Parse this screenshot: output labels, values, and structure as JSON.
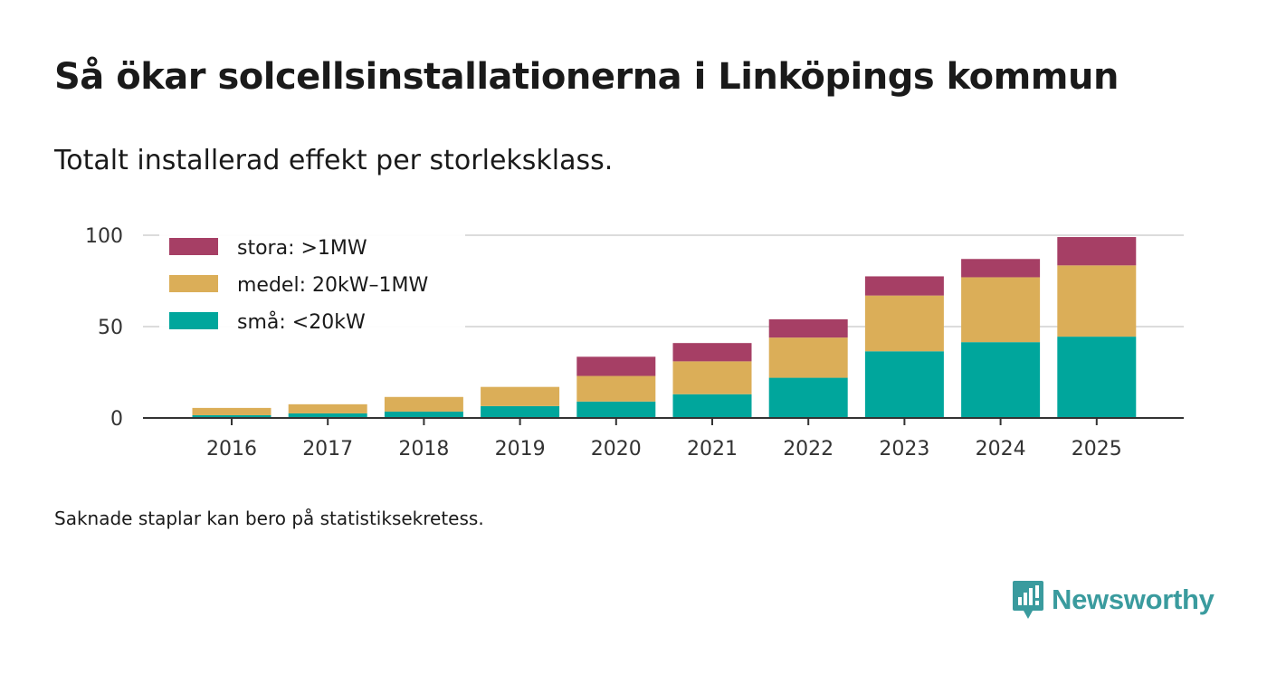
{
  "title": "Så ökar solcellsinstallationerna i Linköpings kommun",
  "subtitle": "Totalt installerad effekt per storleksklass.",
  "note": "Saknade staplar kan bero på statistiksekretess.",
  "brand": {
    "name": "Newsworthy",
    "color": "#3a9b9e"
  },
  "chart_data": {
    "type": "bar",
    "stacked": true,
    "categories": [
      "2016",
      "2017",
      "2018",
      "2019",
      "2020",
      "2021",
      "2022",
      "2023",
      "2024",
      "2025"
    ],
    "series": [
      {
        "name": "små: <20kW",
        "color": "#00a69c",
        "values": [
          1.5,
          2.5,
          3.5,
          6.5,
          9,
          13,
          22,
          36.5,
          41.5,
          44.5
        ]
      },
      {
        "name": "medel: 20kW–1MW",
        "color": "#dbae58",
        "values": [
          4,
          5,
          8,
          10.5,
          14,
          18,
          22,
          30.5,
          35.5,
          39
        ]
      },
      {
        "name": "stora: >1MW",
        "color": "#a63f65",
        "values": [
          0,
          0,
          0,
          0,
          10.5,
          10,
          10,
          10.5,
          10,
          15.5
        ]
      }
    ],
    "legend_order": [
      "stora: >1MW",
      "medel: 20kW–1MW",
      "små: <20kW"
    ],
    "yticks": [
      0,
      50,
      100
    ],
    "ylim": [
      0,
      100
    ],
    "xlabel": "",
    "ylabel": "",
    "grid": true,
    "legend_position": "top-left"
  }
}
